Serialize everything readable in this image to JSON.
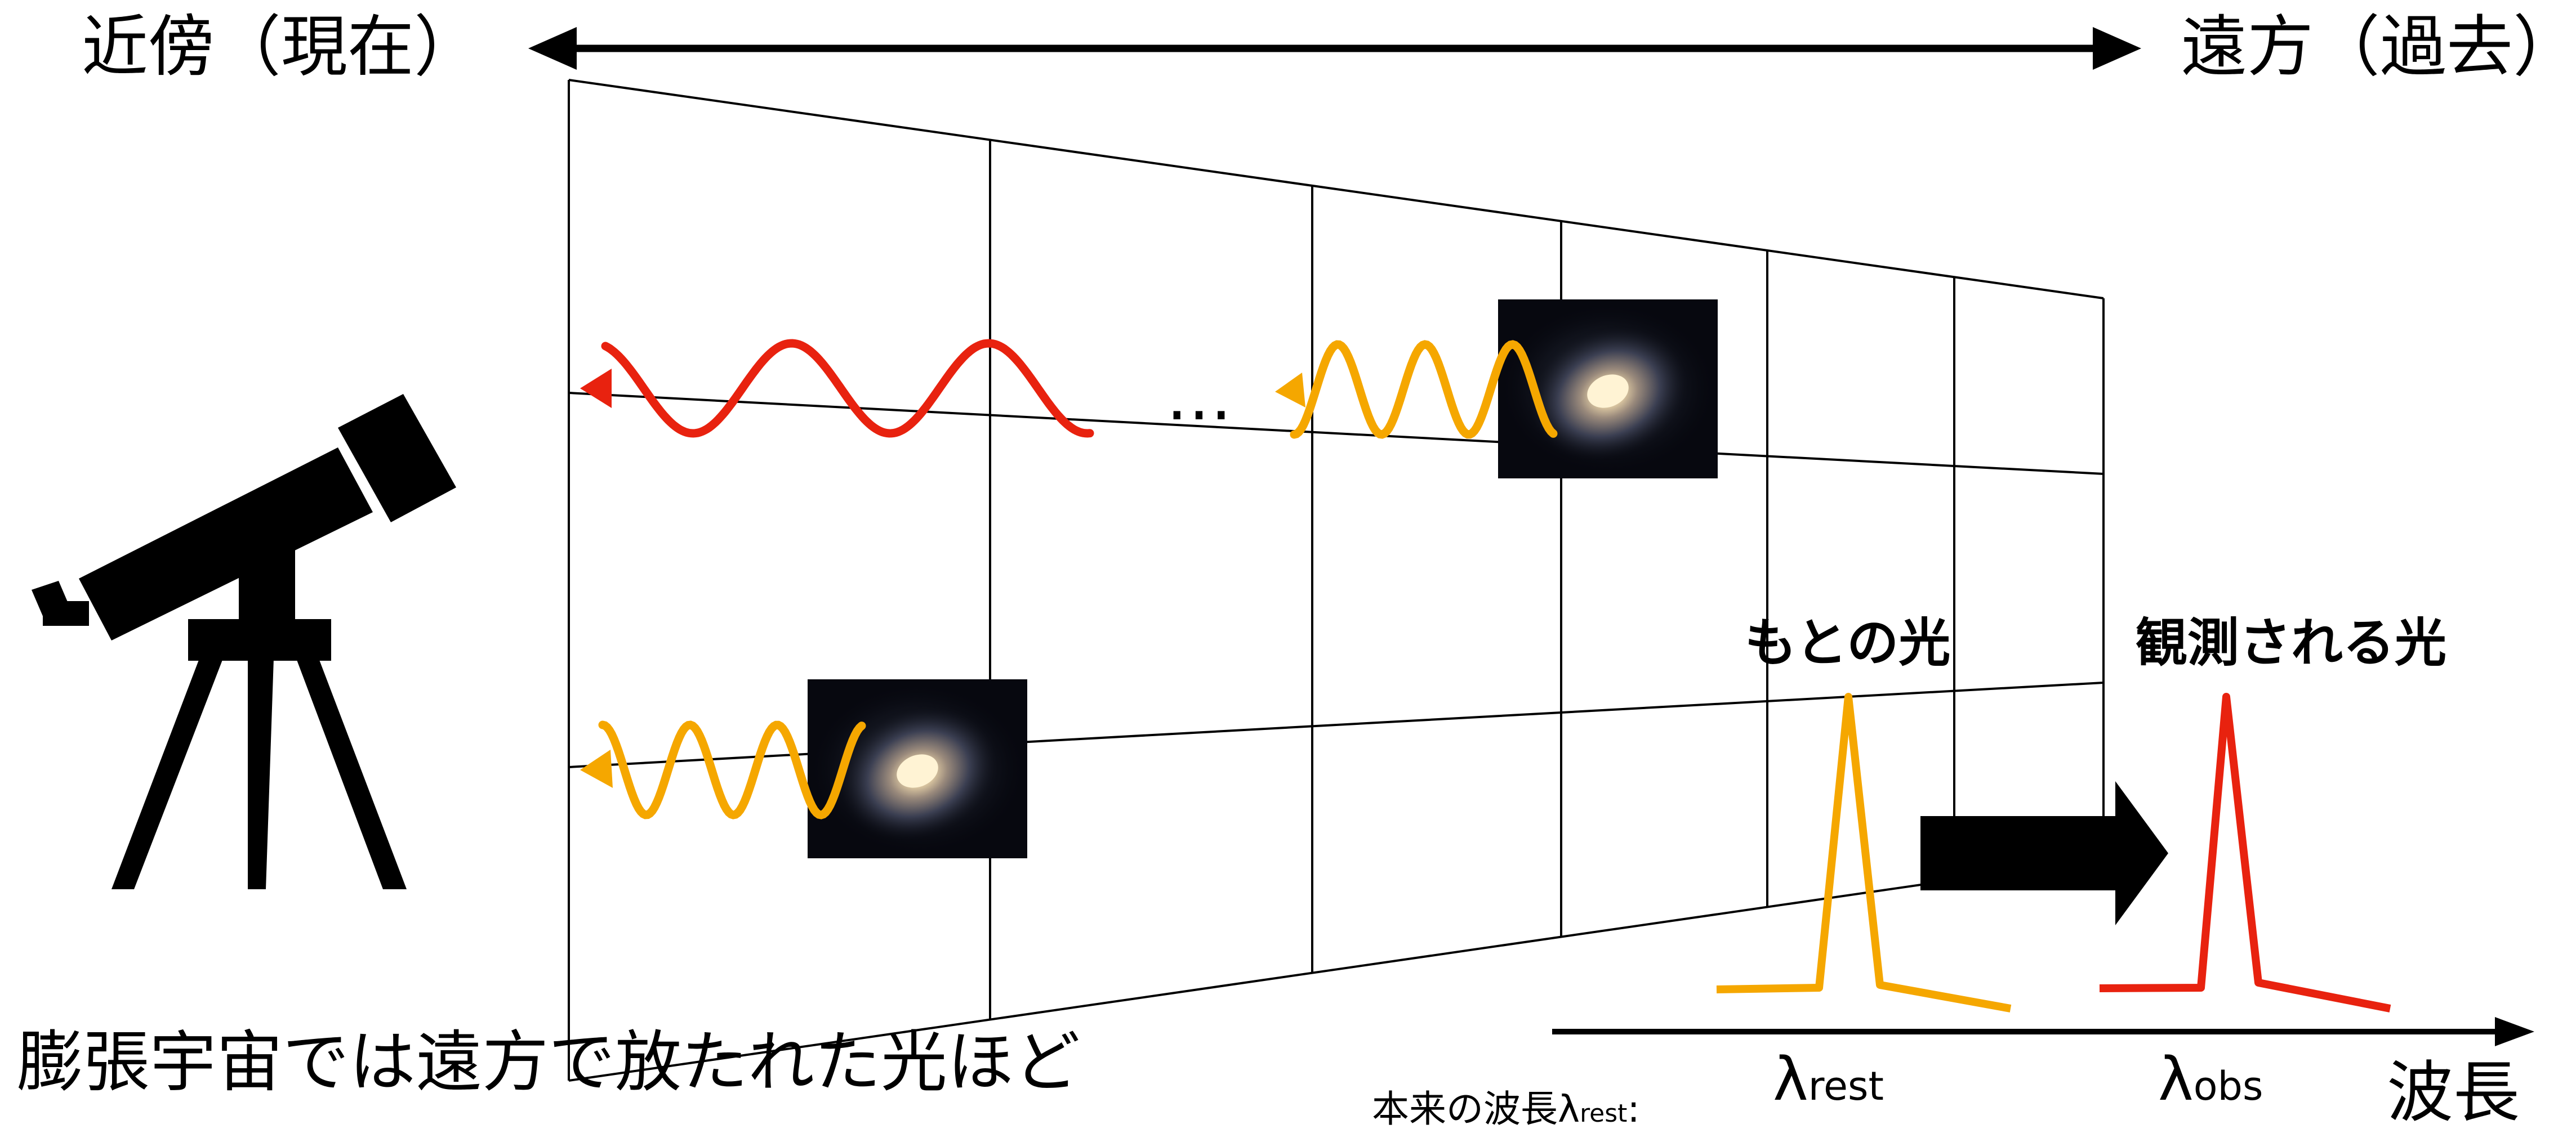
{
  "labels": {
    "near": "近傍（現在）",
    "far": "遠方（過去）",
    "ellipsis": "…",
    "original_light": "もとの光",
    "observed_light": "観測される光",
    "caption": "膨張宇宙では遠方で放たれた光ほど",
    "lambda_rest_symbol": "λ",
    "lambda_rest_sub": "rest",
    "lambda_obs_symbol": "λ",
    "lambda_obs_sub": "obs",
    "wavelength": "波長",
    "rest_note": "本来の波長λ",
    "rest_note_sub": "rest",
    "rest_note_colon": ":"
  },
  "icons": {
    "telescope": "telescope-icon",
    "galaxy": "spiral-galaxy-image"
  },
  "colors": {
    "original_wave": "#f5a700",
    "redshifted_wave": "#e8220f",
    "ink": "#000000"
  }
}
